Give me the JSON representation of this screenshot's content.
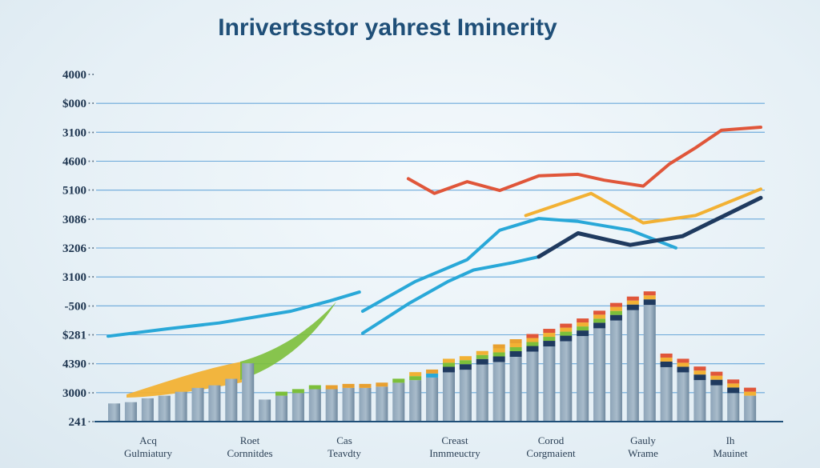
{
  "chart_data": {
    "type": "bar",
    "title": "Inrivertsstor yahrest Iminerity",
    "y_ticks": [
      {
        "label": "4000",
        "sub": "• •"
      },
      {
        "label": "$000",
        "sub": "• •"
      },
      {
        "label": "3100",
        "sub": "• •"
      },
      {
        "label": "4600",
        "sub": "• •"
      },
      {
        "label": "5100",
        "sub": "• •"
      },
      {
        "label": "3086",
        "sub": "• •"
      },
      {
        "label": "3206",
        "sub": "• •"
      },
      {
        "label": "3100",
        "sub": "• •"
      },
      {
        "label": "-500",
        "sub": "• •"
      },
      {
        "label": "$281",
        "sub": "• •"
      },
      {
        "label": "4390",
        "sub": "• •"
      },
      {
        "label": "3000",
        "sub": "• •"
      },
      {
        "label": "241",
        "sub": "• •"
      }
    ],
    "categories": [
      {
        "line1": "Acq",
        "line2": "Gulmiatury"
      },
      {
        "line1": "Roet",
        "line2": "Cornnitdes"
      },
      {
        "line1": "Cas",
        "line2": "Teavdty"
      },
      {
        "line1": "Creast",
        "line2": "Inmmeuctry"
      },
      {
        "line1": "Corod",
        "line2": "Corgmaient"
      },
      {
        "line1": "Gauly",
        "line2": "Wrame"
      },
      {
        "line1": "Ih",
        "line2": "Mauinet"
      }
    ],
    "bars": [
      {
        "base": 14,
        "cap": []
      },
      {
        "base": 15,
        "cap": []
      },
      {
        "base": 18,
        "cap": []
      },
      {
        "base": 20,
        "cap": []
      },
      {
        "base": 23,
        "cap": []
      },
      {
        "base": 26,
        "cap": []
      },
      {
        "base": 28,
        "cap": []
      },
      {
        "base": 33,
        "cap": []
      },
      {
        "base": 45,
        "cap": []
      },
      {
        "base": 17,
        "cap": []
      },
      {
        "base": 20,
        "cap": [
          "#7cbf3a"
        ]
      },
      {
        "base": 22,
        "cap": [
          "#7cbf3a"
        ]
      },
      {
        "base": 25,
        "cap": [
          "#7cbf3a"
        ]
      },
      {
        "base": 25,
        "cap": [
          "#e8a030"
        ]
      },
      {
        "base": 26,
        "cap": [
          "#e8a030"
        ]
      },
      {
        "base": 26,
        "cap": [
          "#e8a030"
        ]
      },
      {
        "base": 27,
        "cap": [
          "#e8a030"
        ]
      },
      {
        "base": 30,
        "cap": [
          "#7cbf3a"
        ]
      },
      {
        "base": 32,
        "cap": [
          "#7cbf3a",
          "#f2b134"
        ]
      },
      {
        "base": 34,
        "cap": [
          "#29a8d8",
          "#e8a030"
        ]
      },
      {
        "base": 38,
        "cap": [
          "#1f3a5f",
          "#7cbf3a",
          "#f2b134"
        ]
      },
      {
        "base": 40,
        "cap": [
          "#1f3a5f",
          "#7cbf3a",
          "#f2b134"
        ]
      },
      {
        "base": 44,
        "cap": [
          "#1f3a5f",
          "#7cbf3a",
          "#f2b134"
        ]
      },
      {
        "base": 46,
        "cap": [
          "#1f3a5f",
          "#7cbf3a",
          "#f2b134",
          "#e8a030"
        ]
      },
      {
        "base": 50,
        "cap": [
          "#1f3a5f",
          "#7cbf3a",
          "#f2b134",
          "#e8a030"
        ]
      },
      {
        "base": 54,
        "cap": [
          "#1f3a5f",
          "#7cbf3a",
          "#f2b134",
          "#e0563a"
        ]
      },
      {
        "base": 58,
        "cap": [
          "#1f3a5f",
          "#7cbf3a",
          "#f2b134",
          "#e0563a"
        ]
      },
      {
        "base": 62,
        "cap": [
          "#1f3a5f",
          "#7cbf3a",
          "#f2b134",
          "#e0563a"
        ]
      },
      {
        "base": 66,
        "cap": [
          "#1f3a5f",
          "#7cbf3a",
          "#f2b134",
          "#e0563a"
        ]
      },
      {
        "base": 72,
        "cap": [
          "#1f3a5f",
          "#7cbf3a",
          "#f2b134",
          "#e0563a"
        ]
      },
      {
        "base": 78,
        "cap": [
          "#1f3a5f",
          "#7cbf3a",
          "#f2b134",
          "#e0563a"
        ]
      },
      {
        "base": 86,
        "cap": [
          "#1f3a5f",
          "#f2b134",
          "#e0563a"
        ]
      },
      {
        "base": 90,
        "cap": [
          "#1f3a5f",
          "#f2b134",
          "#e0563a"
        ]
      },
      {
        "base": 42,
        "cap": [
          "#1f3a5f",
          "#f2b134",
          "#e0563a"
        ]
      },
      {
        "base": 38,
        "cap": [
          "#1f3a5f",
          "#f2b134",
          "#e0563a"
        ]
      },
      {
        "base": 32,
        "cap": [
          "#1f3a5f",
          "#f2b134",
          "#e0563a"
        ]
      },
      {
        "base": 28,
        "cap": [
          "#1f3a5f",
          "#f2b134",
          "#e0563a"
        ]
      },
      {
        "base": 22,
        "cap": [
          "#1f3a5f",
          "#f2b134",
          "#e0563a"
        ]
      },
      {
        "base": 20,
        "cap": [
          "#f2b134",
          "#e0563a"
        ]
      }
    ],
    "series": [
      {
        "color": "#29a8d8",
        "points": [
          [
            0,
            58
          ],
          [
            0.09,
            63
          ],
          [
            0.17,
            67
          ],
          [
            0.28,
            75
          ],
          [
            0.34,
            82
          ],
          [
            0.385,
            88
          ]
        ]
      },
      {
        "color": "#29a8d8",
        "points": [
          [
            0.39,
            75
          ],
          [
            0.47,
            95
          ],
          [
            0.55,
            110
          ],
          [
            0.6,
            130
          ],
          [
            0.66,
            138
          ],
          [
            0.72,
            136
          ],
          [
            0.8,
            130
          ],
          [
            0.87,
            118
          ]
        ]
      },
      {
        "color": "#29a8d8",
        "points": [
          [
            0.39,
            60
          ],
          [
            0.46,
            80
          ],
          [
            0.52,
            95
          ],
          [
            0.56,
            103
          ],
          [
            0.62,
            108
          ],
          [
            0.66,
            112
          ]
        ]
      },
      {
        "color": "#1f3a5f",
        "points": [
          [
            0.66,
            112
          ],
          [
            0.72,
            128
          ],
          [
            0.8,
            120
          ],
          [
            0.88,
            126
          ],
          [
            1.0,
            152
          ]
        ]
      },
      {
        "color": "#f2b134",
        "points": [
          [
            0.64,
            140
          ],
          [
            0.74,
            155
          ],
          [
            0.82,
            135
          ],
          [
            0.9,
            140
          ],
          [
            1.0,
            158
          ]
        ]
      },
      {
        "color": "#e0563a",
        "points": [
          [
            0.46,
            165
          ],
          [
            0.5,
            155
          ],
          [
            0.55,
            163
          ],
          [
            0.6,
            157
          ],
          [
            0.66,
            167
          ],
          [
            0.72,
            168
          ],
          [
            0.76,
            164
          ],
          [
            0.82,
            160
          ],
          [
            0.86,
            175
          ],
          [
            0.9,
            186
          ],
          [
            0.94,
            198
          ],
          [
            1.0,
            200
          ]
        ]
      }
    ],
    "area": {
      "colors": [
        "#f2b134",
        "#7cbf3a"
      ]
    },
    "grid": true
  }
}
